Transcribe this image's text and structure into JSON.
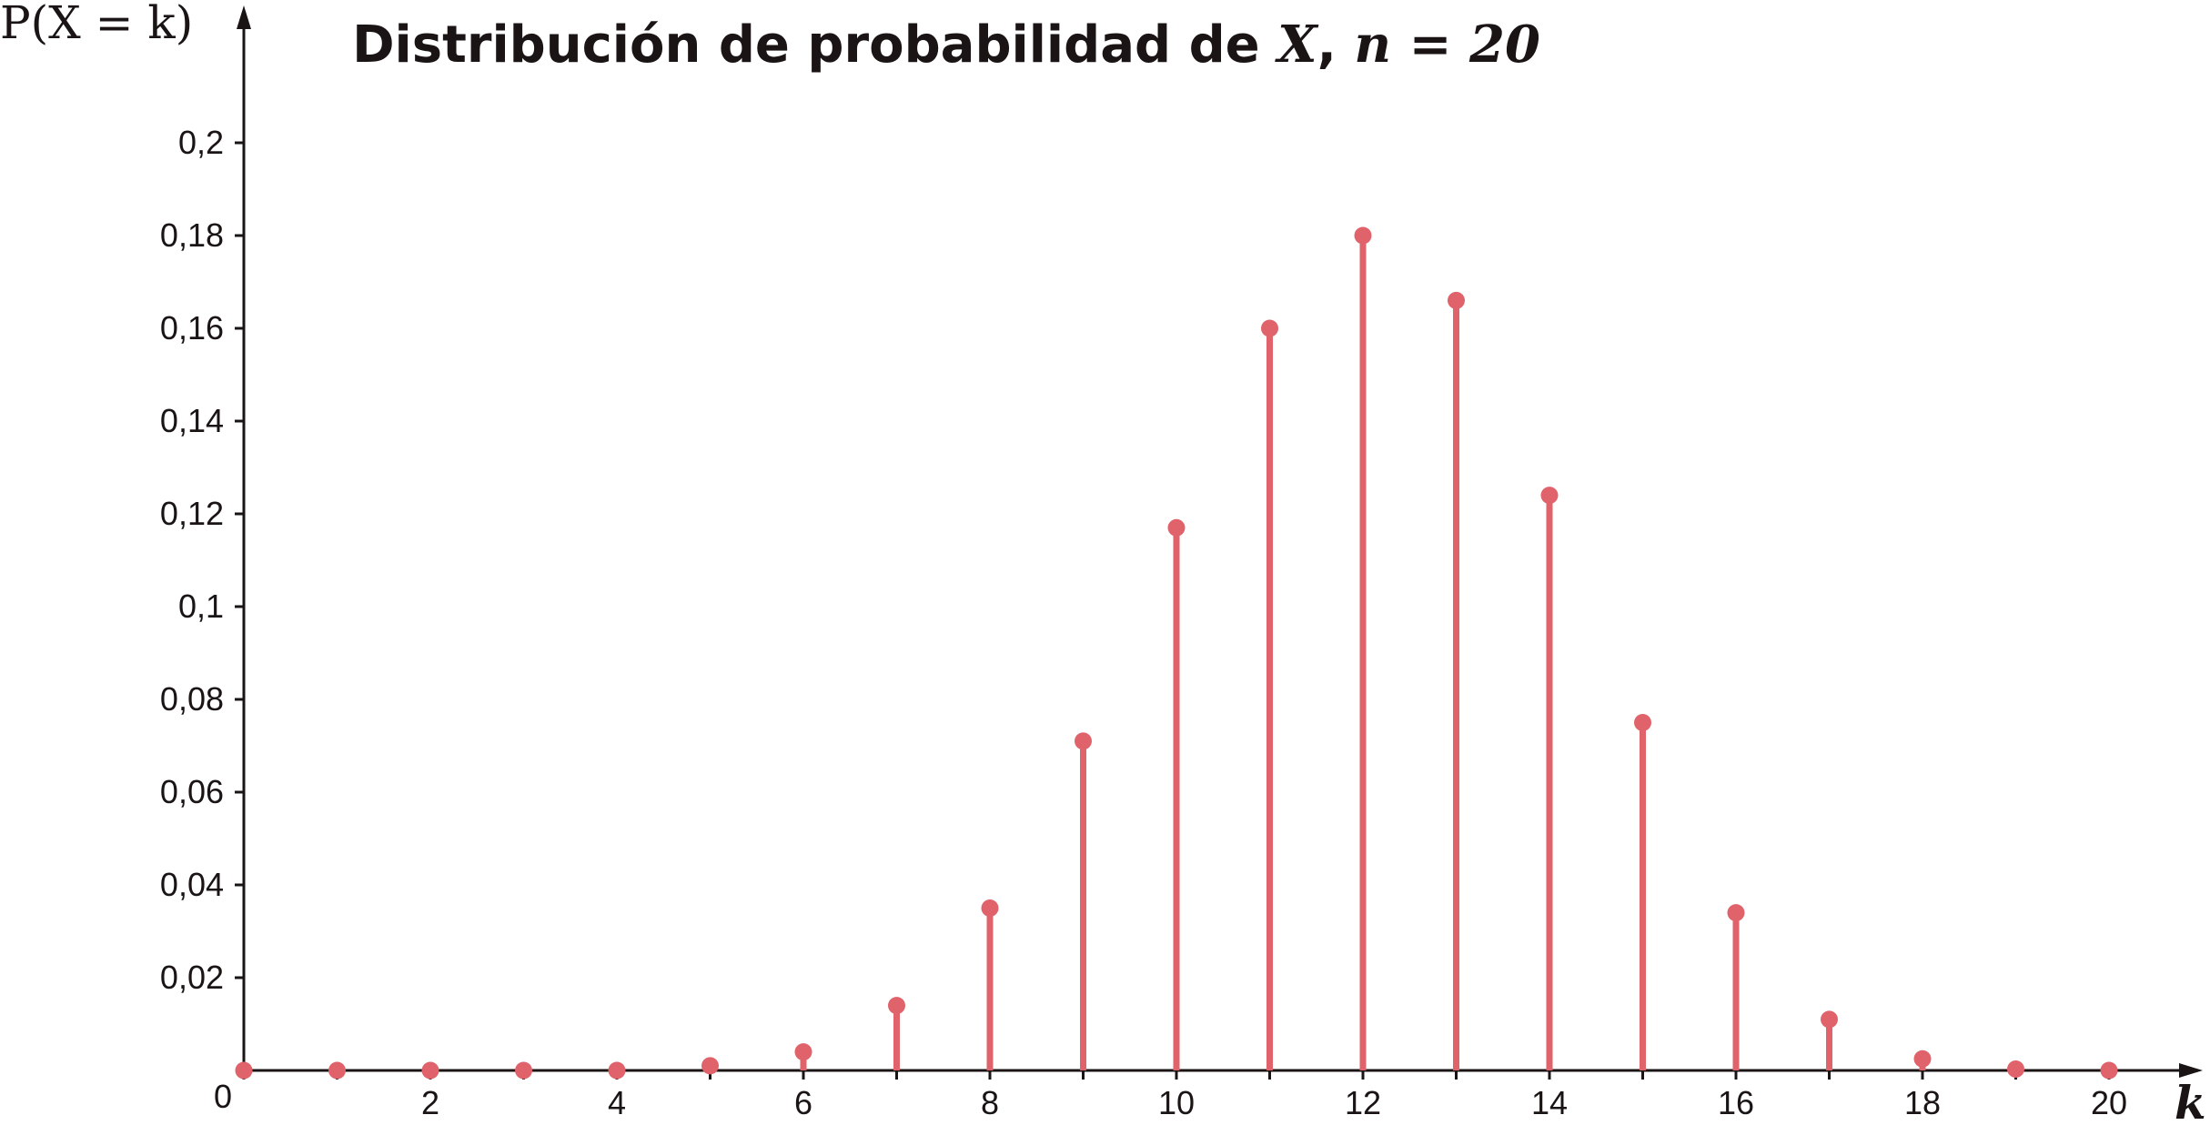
{
  "chart_data": {
    "type": "stem",
    "title_text": "Distribución de probabilidad de ",
    "title_var": "X",
    "title_sep": ", ",
    "title_n": "n = 20",
    "ylabel": "P(X = k)",
    "xlabel": "k",
    "origin_label": "0",
    "x": [
      0,
      1,
      2,
      3,
      4,
      5,
      6,
      7,
      8,
      9,
      10,
      11,
      12,
      13,
      14,
      15,
      16,
      17,
      18,
      19,
      20
    ],
    "values": [
      0.0,
      0.0,
      0.0,
      0.0,
      0.0,
      0.001,
      0.004,
      0.014,
      0.035,
      0.071,
      0.117,
      0.16,
      0.18,
      0.166,
      0.124,
      0.075,
      0.034,
      0.011,
      0.0025,
      0.0003,
      0.0
    ],
    "xlim": [
      0,
      20
    ],
    "ylim": [
      0,
      0.2
    ],
    "x_ticks": [
      2,
      4,
      6,
      8,
      10,
      12,
      14,
      16,
      18,
      20
    ],
    "x_tick_labels": [
      "2",
      "4",
      "6",
      "8",
      "10",
      "12",
      "14",
      "16",
      "18",
      "20"
    ],
    "y_ticks": [
      0.02,
      0.04,
      0.06,
      0.08,
      0.1,
      0.12,
      0.14,
      0.16,
      0.18,
      0.2
    ],
    "y_tick_labels": [
      "0,02",
      "0,04",
      "0,06",
      "0,08",
      "0,1",
      "0,12",
      "0,14",
      "0,16",
      "0,18",
      "0,2"
    ],
    "grid": false,
    "colors": {
      "stem": "#e0636b",
      "axis": "#1a1414"
    }
  }
}
